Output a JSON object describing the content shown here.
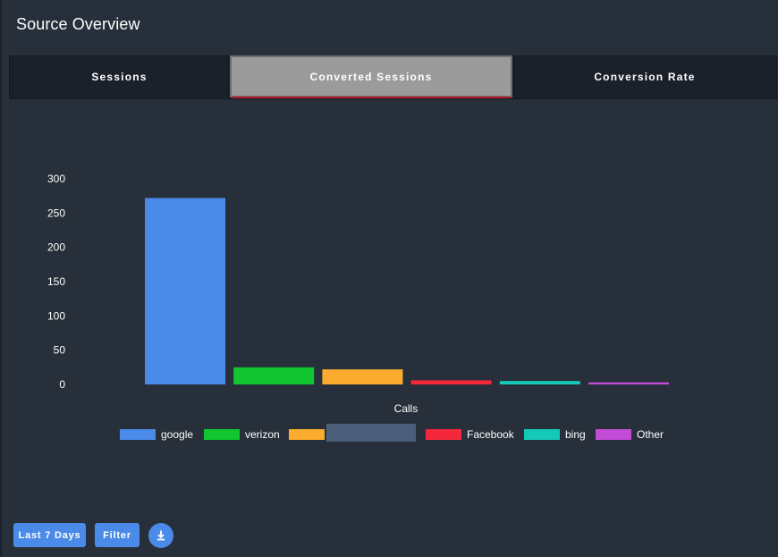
{
  "header": {
    "title": "Source Overview"
  },
  "tabs": [
    {
      "label": "Sessions",
      "active": false
    },
    {
      "label": "Converted Sessions",
      "active": true
    },
    {
      "label": "Conversion Rate",
      "active": false
    }
  ],
  "chart_data": {
    "type": "bar",
    "title": "",
    "xlabel": "Calls",
    "ylabel": "",
    "ylim": [
      0,
      300
    ],
    "yticks": [
      0,
      50,
      100,
      150,
      200,
      250,
      300
    ],
    "grid": false,
    "legend_position": "bottom",
    "series": [
      {
        "name": "google",
        "value": 272,
        "color": "#4a8ae9"
      },
      {
        "name": "verizon",
        "value": 25,
        "color": "#12c631"
      },
      {
        "name": "",
        "value": 22,
        "color": "#fbac2e"
      },
      {
        "name": "Facebook",
        "value": 6,
        "color": "#f5273a"
      },
      {
        "name": "bing",
        "value": 5,
        "color": "#16c8b8"
      },
      {
        "name": "Other",
        "value": 3,
        "color": "#c24bd7"
      }
    ]
  },
  "controls": {
    "range_label": "Last 7 Days",
    "filter_label": "Filter",
    "download_icon": "download-icon"
  }
}
